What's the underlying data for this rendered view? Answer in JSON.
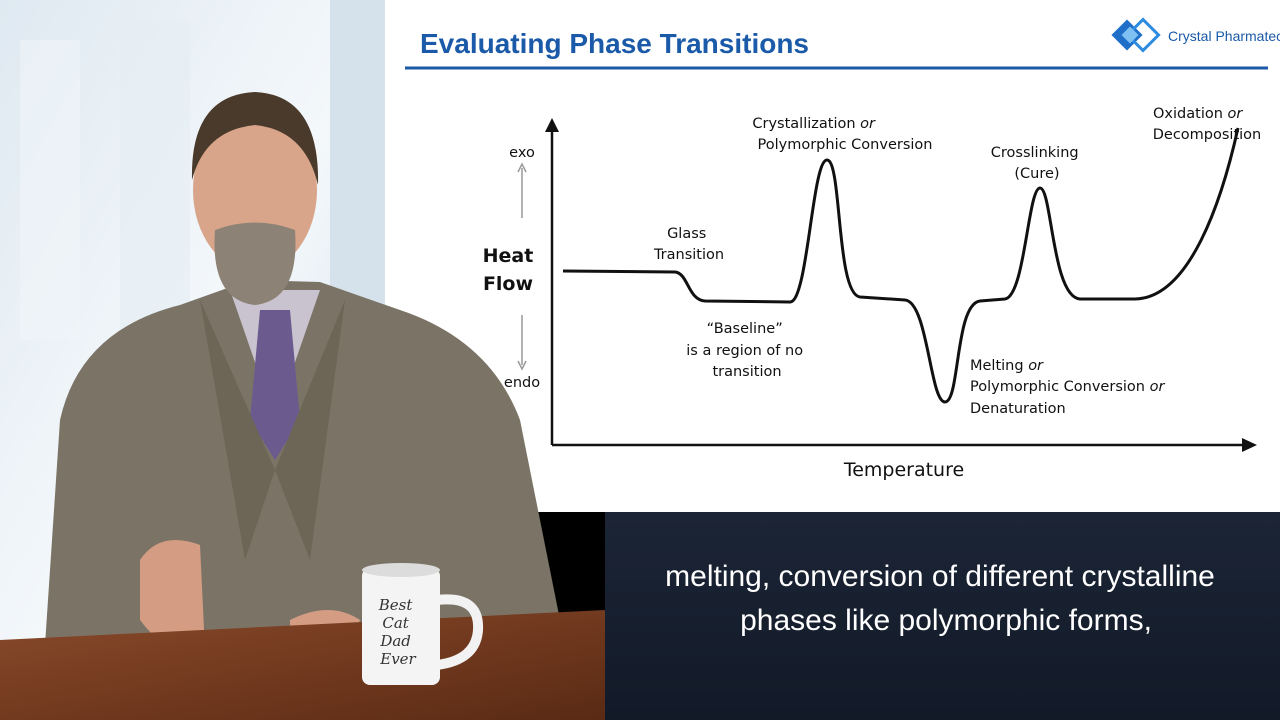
{
  "slide": {
    "title": "Evaluating Phase Transitions",
    "logo": "Crystal Pharmatech",
    "y_axis": {
      "label": [
        "Heat",
        "Flow"
      ],
      "top": "exo",
      "bottom": "endo"
    },
    "x_axis_label": "Temperature",
    "annotations": [
      {
        "lines": [
          {
            "text": "Glass"
          },
          {
            "text": "Transition"
          }
        ]
      },
      {
        "lines": [
          {
            "text": "Crystallization",
            "em": "or"
          },
          {
            "text": "Polymorphic Conversion"
          }
        ]
      },
      {
        "lines": [
          {
            "text": "“Baseline”"
          },
          {
            "text": "is a region of no"
          },
          {
            "text": "transition"
          }
        ]
      },
      {
        "lines": [
          {
            "text": "Crosslinking"
          },
          {
            "text": "(Cure)"
          }
        ]
      },
      {
        "lines": [
          {
            "text": "Melting",
            "em": "or"
          },
          {
            "text": "Polymorphic Conversion",
            "em": "or"
          },
          {
            "text": "Denaturation"
          }
        ]
      },
      {
        "lines": [
          {
            "text": "Oxidation",
            "em": "or"
          },
          {
            "text": "Decomposition"
          }
        ]
      }
    ]
  },
  "mug": {
    "lines": [
      "Best",
      "Cat",
      "Dad",
      "Ever"
    ]
  },
  "caption": {
    "lines": [
      "melting, conversion of different crystalline",
      "phases like polymorphic forms,"
    ]
  }
}
